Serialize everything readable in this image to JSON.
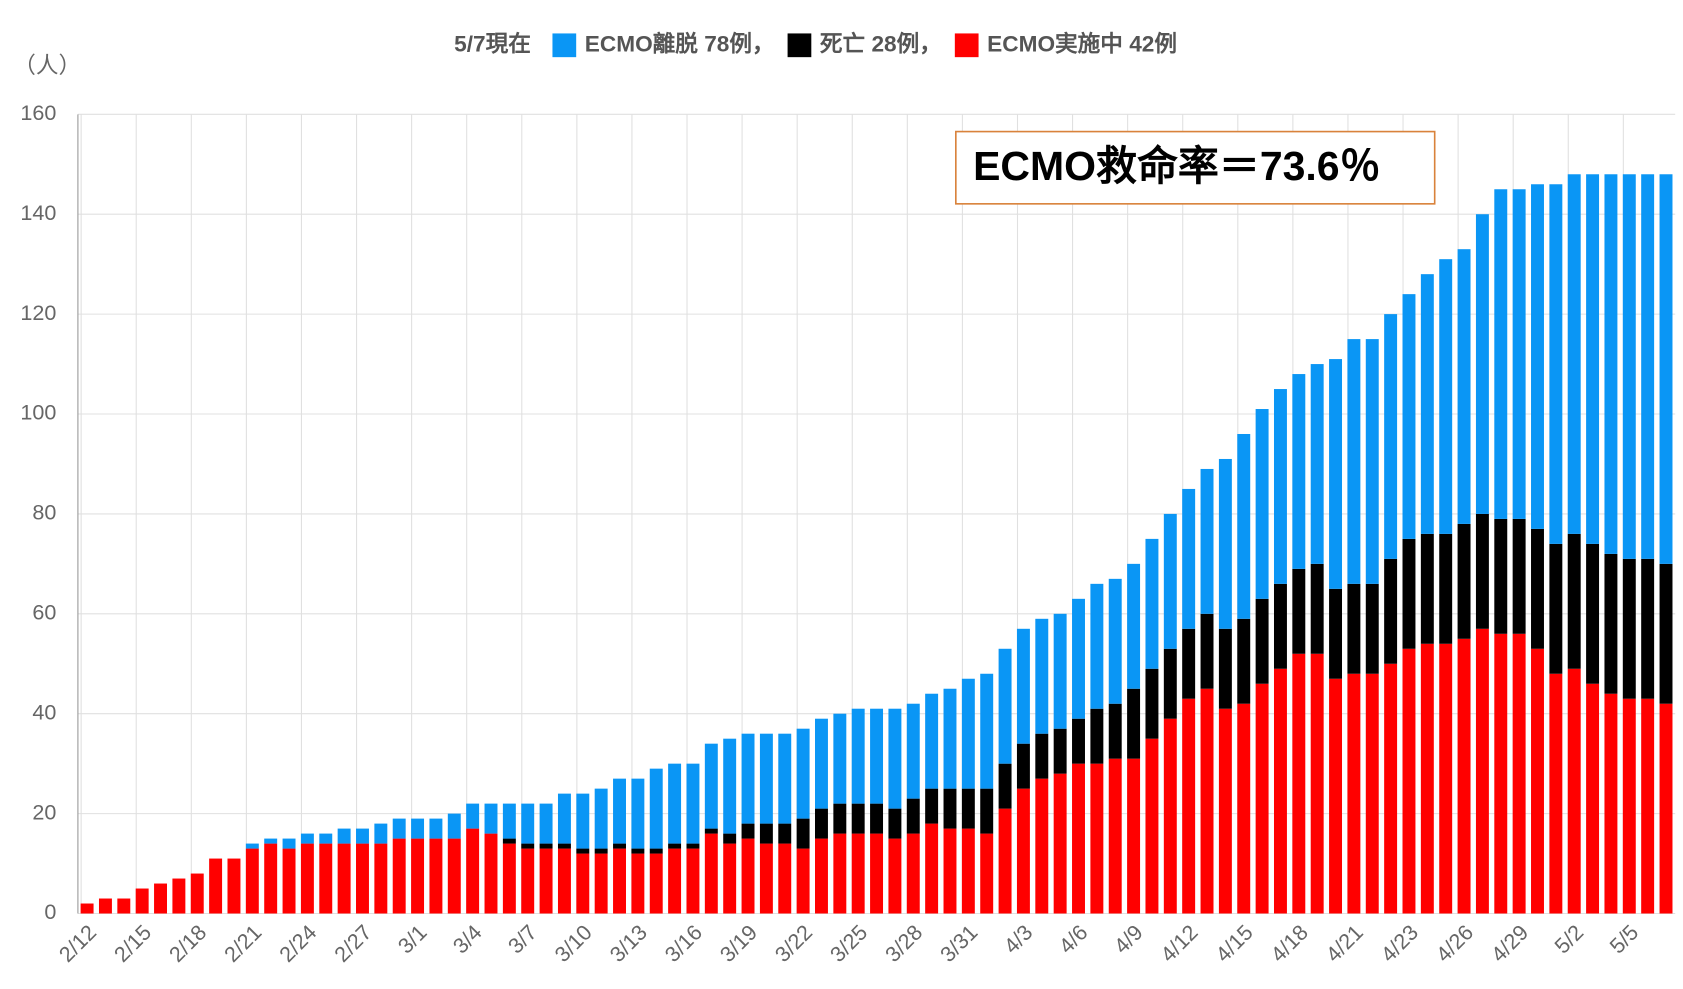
{
  "chart_data": {
    "type": "stacked_bar",
    "subtitle": "5/7現在",
    "y_label": "（人）",
    "annotation": "ECMO救命率＝73.6％",
    "categories": [
      "2/12",
      null,
      null,
      "2/15",
      null,
      null,
      "2/18",
      null,
      null,
      "2/21",
      null,
      null,
      "2/24",
      null,
      null,
      "2/27",
      null,
      null,
      "3/1",
      null,
      null,
      "3/4",
      null,
      null,
      "3/7",
      null,
      null,
      "3/10",
      null,
      null,
      "3/13",
      null,
      null,
      "3/16",
      null,
      null,
      "3/19",
      null,
      null,
      "3/22",
      null,
      null,
      "3/25",
      null,
      null,
      "3/28",
      null,
      null,
      "3/31",
      null,
      null,
      "4/3",
      null,
      null,
      "4/6",
      null,
      null,
      "4/9",
      null,
      null,
      "4/12",
      null,
      null,
      "4/15",
      null,
      null,
      "4/18",
      null,
      null,
      "4/21",
      null,
      null,
      "4/23",
      null,
      null,
      "4/26",
      null,
      null,
      "4/29",
      null,
      null,
      "5/2",
      null,
      null,
      "5/5",
      null,
      null
    ],
    "series": [
      {
        "name": "ECMO離脱 78例，",
        "color": "#0a96f5",
        "values": [
          0,
          0,
          0,
          0,
          0,
          0,
          0,
          0,
          0,
          1,
          1,
          2,
          2,
          2,
          3,
          3,
          4,
          4,
          4,
          4,
          5,
          5,
          6,
          7,
          8,
          8,
          10,
          11,
          12,
          13,
          14,
          16,
          16,
          16,
          17,
          19,
          18,
          18,
          18,
          18,
          18,
          18,
          19,
          19,
          20,
          19,
          19,
          20,
          22,
          23,
          23,
          23,
          23,
          23,
          24,
          25,
          25,
          25,
          26,
          27,
          28,
          29,
          34,
          37,
          38,
          39,
          39,
          40,
          46,
          49,
          49,
          49,
          49,
          52,
          55,
          55,
          60,
          66,
          66,
          69,
          72,
          72,
          74,
          76,
          77,
          77,
          78
        ]
      },
      {
        "name": "死亡 28例，",
        "color": "#000000",
        "values": [
          0,
          0,
          0,
          0,
          0,
          0,
          0,
          0,
          0,
          0,
          0,
          0,
          0,
          0,
          0,
          0,
          0,
          0,
          0,
          0,
          0,
          0,
          0,
          1,
          1,
          1,
          1,
          1,
          1,
          1,
          1,
          1,
          1,
          1,
          1,
          2,
          3,
          4,
          4,
          6,
          6,
          6,
          6,
          6,
          6,
          7,
          7,
          8,
          8,
          9,
          9,
          9,
          9,
          9,
          9,
          11,
          11,
          14,
          14,
          14,
          14,
          15,
          16,
          17,
          17,
          17,
          17,
          18,
          18,
          18,
          18,
          21,
          22,
          22,
          22,
          23,
          23,
          23,
          23,
          24,
          26,
          27,
          28,
          28,
          28,
          28,
          28
        ]
      },
      {
        "name": "ECMO実施中 42例",
        "color": "#ff0000",
        "values": [
          2,
          3,
          3,
          5,
          6,
          7,
          8,
          11,
          11,
          13,
          14,
          13,
          14,
          14,
          14,
          14,
          14,
          15,
          15,
          15,
          15,
          17,
          16,
          14,
          13,
          13,
          13,
          12,
          12,
          13,
          12,
          12,
          13,
          13,
          16,
          14,
          15,
          14,
          14,
          13,
          15,
          16,
          16,
          16,
          15,
          16,
          18,
          17,
          17,
          16,
          21,
          25,
          27,
          28,
          30,
          30,
          31,
          31,
          35,
          39,
          43,
          45,
          41,
          42,
          46,
          49,
          52,
          52,
          47,
          48,
          48,
          50,
          53,
          54,
          54,
          55,
          57,
          56,
          56,
          53,
          48,
          49,
          46,
          44,
          43,
          43,
          42
        ]
      }
    ],
    "ylim": [
      0,
      160
    ],
    "yticks": [
      0,
      20,
      40,
      60,
      80,
      100,
      120,
      140,
      160
    ],
    "grid": true,
    "legend": "top"
  }
}
